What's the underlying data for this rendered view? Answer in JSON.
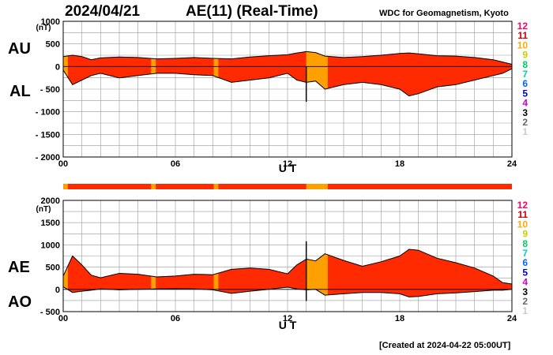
{
  "header": {
    "date": "2024/04/21",
    "title": "AE(11) (Real-Time)",
    "source": "WDC for Geomagnetism, Kyoto"
  },
  "footer": {
    "created": "[Created at 2024-04-22 05:00UT]"
  },
  "colors": {
    "fill": "#ff2a00",
    "quiet_fill": "#ffa000",
    "bar": "#ff2a00",
    "grid": "#999999",
    "legend": [
      "#cccccc",
      "#666666",
      "#000000",
      "#cc00cc",
      "#0000cc",
      "#0066ff",
      "#00cccc",
      "#00cc66",
      "#cccc00",
      "#ffaa00",
      "#cc0000",
      "#ff0066"
    ]
  },
  "chart_data": [
    {
      "type": "area",
      "panel": "AU/AL",
      "upper_label": "AU",
      "lower_label": "AL",
      "unit": "(nT)",
      "xlabel": "U T",
      "xlim": [
        0,
        24
      ],
      "ylim": [
        -2000,
        1000
      ],
      "yticks": [
        "1000",
        "500",
        "0",
        "- 500",
        "- 1000",
        "- 1500",
        "- 2000"
      ],
      "ytick_values": [
        1000,
        500,
        0,
        -500,
        -1000,
        -1500,
        -2000
      ],
      "xticks": [
        "00",
        "06",
        "12",
        "18",
        "24"
      ],
      "xtick_values": [
        0,
        6,
        12,
        18,
        24
      ],
      "legend_levels": [
        "12",
        "11",
        "10",
        "9",
        "8",
        "7",
        "6",
        "5",
        "4",
        "3",
        "2",
        "1"
      ],
      "quiet_intervals": [
        [
          0.0,
          0.25
        ],
        [
          4.7,
          4.95
        ],
        [
          8.05,
          8.3
        ],
        [
          13.0,
          14.15
        ]
      ],
      "series": [
        {
          "name": "AU",
          "x": [
            0,
            0.5,
            1,
            1.5,
            2,
            3,
            4,
            5,
            6,
            7,
            8,
            9,
            10,
            11,
            12,
            12.5,
            13,
            13.5,
            14,
            15,
            16,
            17,
            18,
            18.5,
            19,
            20,
            21,
            22,
            23,
            23.5,
            24
          ],
          "values": [
            220,
            250,
            220,
            150,
            190,
            210,
            200,
            170,
            180,
            200,
            180,
            170,
            210,
            240,
            260,
            300,
            330,
            310,
            230,
            200,
            220,
            250,
            290,
            300,
            280,
            240,
            230,
            200,
            150,
            100,
            50
          ]
        },
        {
          "name": "AL",
          "x": [
            0,
            0.5,
            1,
            1.5,
            2,
            3,
            4,
            5,
            6,
            7,
            8,
            9,
            10,
            11,
            12,
            12.5,
            13,
            13.5,
            14,
            15,
            16,
            17,
            18,
            18.5,
            19,
            20,
            21,
            22,
            23,
            23.5,
            24
          ],
          "values": [
            -80,
            -400,
            -300,
            -200,
            -150,
            -250,
            -200,
            -150,
            -150,
            -180,
            -200,
            -350,
            -300,
            -250,
            -150,
            -300,
            -350,
            -320,
            -500,
            -400,
            -350,
            -400,
            -500,
            -650,
            -600,
            -450,
            -400,
            -300,
            -200,
            -150,
            -50
          ]
        }
      ],
      "spikes": [
        {
          "x": 13.0,
          "value": -780
        }
      ]
    },
    {
      "type": "area",
      "panel": "AE/AO",
      "upper_label": "AE",
      "lower_label": "AO",
      "unit": "(nT)",
      "xlabel": "U T",
      "xlim": [
        0,
        24
      ],
      "ylim": [
        -500,
        2000
      ],
      "yticks": [
        "2000",
        "1500",
        "1000",
        "500",
        "0",
        "- 500"
      ],
      "ytick_values": [
        2000,
        1500,
        1000,
        500,
        0,
        -500
      ],
      "xticks": [
        "00",
        "06",
        "12",
        "18",
        "24"
      ],
      "xtick_values": [
        0,
        6,
        12,
        18,
        24
      ],
      "legend_levels": [
        "12",
        "11",
        "10",
        "9",
        "8",
        "7",
        "6",
        "5",
        "4",
        "3",
        "2",
        "1"
      ],
      "quiet_intervals": [
        [
          0.0,
          0.25
        ],
        [
          4.7,
          4.95
        ],
        [
          8.05,
          8.3
        ],
        [
          13.0,
          14.15
        ]
      ],
      "series": [
        {
          "name": "AE",
          "x": [
            0,
            0.5,
            1,
            1.5,
            2,
            3,
            4,
            5,
            6,
            7,
            8,
            9,
            10,
            11,
            12,
            12.5,
            13,
            13.5,
            14,
            15,
            16,
            17,
            18,
            18.5,
            19,
            20,
            21,
            22,
            23,
            23.5,
            24
          ],
          "values": [
            300,
            750,
            550,
            320,
            260,
            360,
            340,
            280,
            300,
            340,
            330,
            450,
            480,
            450,
            350,
            550,
            680,
            640,
            800,
            650,
            520,
            620,
            750,
            900,
            880,
            700,
            600,
            480,
            300,
            150,
            120
          ]
        },
        {
          "name": "AO",
          "x": [
            0,
            0.5,
            1,
            1.5,
            2,
            3,
            4,
            5,
            6,
            7,
            8,
            9,
            10,
            11,
            12,
            12.5,
            13,
            13.5,
            14,
            15,
            16,
            17,
            18,
            18.5,
            19,
            20,
            21,
            22,
            23,
            23.5,
            24
          ],
          "values": [
            60,
            -70,
            -40,
            -20,
            10,
            -10,
            0,
            10,
            15,
            10,
            -10,
            -90,
            -40,
            0,
            50,
            10,
            -10,
            0,
            -130,
            -100,
            -70,
            -70,
            -100,
            -170,
            -160,
            -100,
            -80,
            -50,
            -20,
            -20,
            0
          ]
        }
      ],
      "spikes": [
        {
          "x": 13.0,
          "value": 1080
        },
        {
          "x": 13.0,
          "value": -260
        }
      ]
    }
  ]
}
